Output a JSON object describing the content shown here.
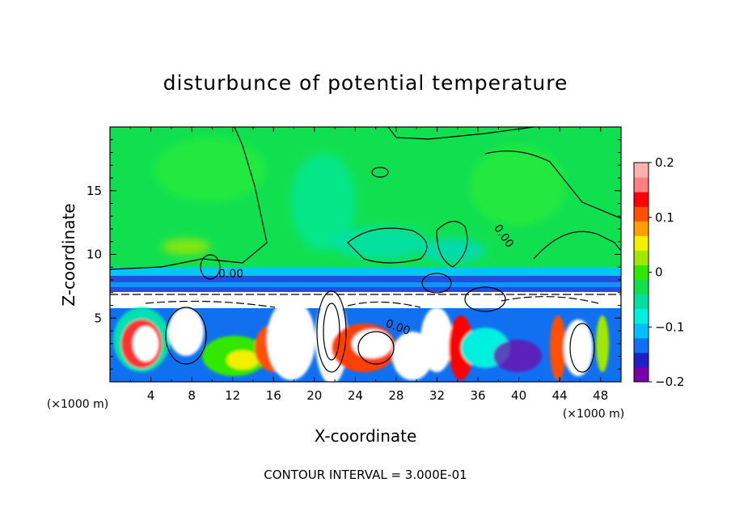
{
  "chart_data": {
    "type": "heatmap",
    "title": "disturbunce of potential temperature",
    "xlabel": "X-coordinate",
    "ylabel": "Z-coordinate",
    "x_unit": "(×1000 m)",
    "z_unit": "(×1000 m)",
    "xlim": [
      0,
      50
    ],
    "ylim": [
      0,
      20
    ],
    "x_ticks": [
      4,
      8,
      12,
      16,
      20,
      24,
      28,
      32,
      36,
      40,
      44,
      48
    ],
    "y_ticks": [
      5,
      10,
      15
    ],
    "colorbar": {
      "range": [
        -0.2,
        0.2
      ],
      "tick_values": [
        0.2,
        0.1,
        0,
        -0.1,
        -0.2
      ],
      "tick_labels": [
        "0.2",
        "0.1",
        "0",
        "−0.1",
        "−0.2"
      ],
      "colors": [
        "#7a00a8",
        "#2020c8",
        "#1070f0",
        "#00c0ff",
        "#00f0e0",
        "#00e0a0",
        "#10e050",
        "#30e800",
        "#a0e800",
        "#f0f000",
        "#ffa000",
        "#ff5000",
        "#ff0000",
        "#ff8080",
        "#ffb0b0"
      ]
    },
    "contour_label": "0.00",
    "contour_interval": "CONTOUR INTERVAL = 3.000E-01"
  }
}
